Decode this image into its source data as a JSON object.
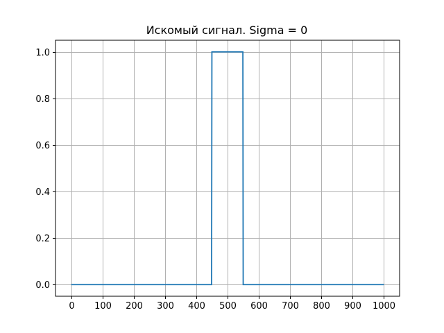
{
  "chart_data": {
    "type": "line",
    "title": "Искомый сигнал. Sigma = 0",
    "xlabel": "",
    "ylabel": "",
    "xlim": [
      -50,
      1050
    ],
    "ylim": [
      -0.05,
      1.05
    ],
    "grid": true,
    "x_ticks": [
      0,
      100,
      200,
      300,
      400,
      500,
      600,
      700,
      800,
      900,
      1000
    ],
    "x_tick_labels": [
      "0",
      "100",
      "200",
      "300",
      "400",
      "500",
      "600",
      "700",
      "800",
      "900",
      "1000"
    ],
    "y_ticks": [
      0,
      0.2,
      0.4,
      0.6,
      0.8,
      1.0
    ],
    "y_tick_labels": [
      "0.0",
      "0.2",
      "0.4",
      "0.6",
      "0.8",
      "1.0"
    ],
    "series": [
      {
        "color": "#1f77b4",
        "x": [
          0,
          449,
          450,
          549,
          550,
          1000
        ],
        "y": [
          0,
          0,
          1,
          1,
          0,
          0
        ]
      }
    ]
  }
}
